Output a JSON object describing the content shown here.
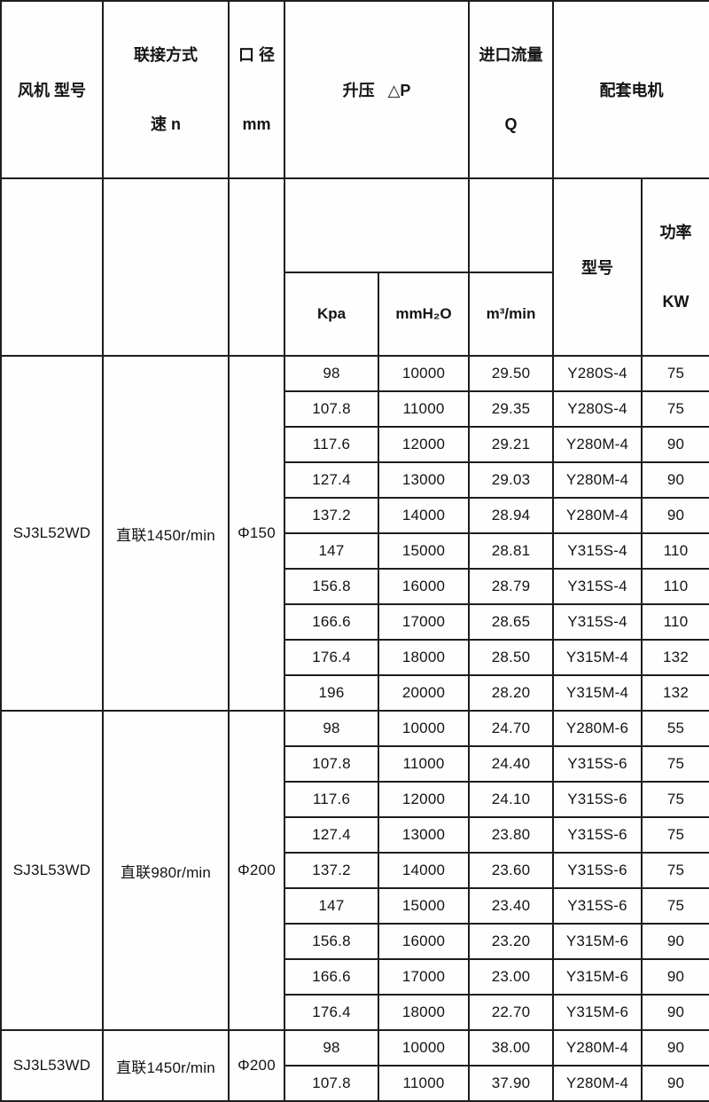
{
  "table": {
    "header": {
      "fan_model": "风机 型号",
      "connection": "联接方式",
      "connection_sub": "速 n",
      "diameter": "口 径",
      "diameter_unit": "mm",
      "pressure": "升压   △P",
      "flow": "进口流量",
      "flow_sub": "Q",
      "motor": "配套电机",
      "kpa": "Kpa",
      "mmh2o": "mmH₂O",
      "m3min": "m³/min",
      "motor_model": "型号",
      "power": "功率",
      "power_unit": "KW"
    },
    "groups": [
      {
        "model": "SJ3L52WD",
        "connection": "直联1450r/min",
        "diameter": "Φ150",
        "rows": [
          [
            "98",
            "10000",
            "29.50",
            "Y280S-4",
            "75"
          ],
          [
            "107.8",
            "11000",
            "29.35",
            "Y280S-4",
            "75"
          ],
          [
            "117.6",
            "12000",
            "29.21",
            "Y280M-4",
            "90"
          ],
          [
            "127.4",
            "13000",
            "29.03",
            "Y280M-4",
            "90"
          ],
          [
            "137.2",
            "14000",
            "28.94",
            "Y280M-4",
            "90"
          ],
          [
            "147",
            "15000",
            "28.81",
            "Y315S-4",
            "110"
          ],
          [
            "156.8",
            "16000",
            "28.79",
            "Y315S-4",
            "110"
          ],
          [
            "166.6",
            "17000",
            "28.65",
            "Y315S-4",
            "110"
          ],
          [
            "176.4",
            "18000",
            "28.50",
            "Y315M-4",
            "132"
          ],
          [
            "196",
            "20000",
            "28.20",
            "Y315M-4",
            "132"
          ]
        ]
      },
      {
        "model": "SJ3L53WD",
        "connection": "直联980r/min",
        "diameter": "Φ200",
        "rows": [
          [
            "98",
            "10000",
            "24.70",
            "Y280M-6",
            "55"
          ],
          [
            "107.8",
            "11000",
            "24.40",
            "Y315S-6",
            "75"
          ],
          [
            "117.6",
            "12000",
            "24.10",
            "Y315S-6",
            "75"
          ],
          [
            "127.4",
            "13000",
            "23.80",
            "Y315S-6",
            "75"
          ],
          [
            "137.2",
            "14000",
            "23.60",
            "Y315S-6",
            "75"
          ],
          [
            "147",
            "15000",
            "23.40",
            "Y315S-6",
            "75"
          ],
          [
            "156.8",
            "16000",
            "23.20",
            "Y315M-6",
            "90"
          ],
          [
            "166.6",
            "17000",
            "23.00",
            "Y315M-6",
            "90"
          ],
          [
            "176.4",
            "18000",
            "22.70",
            "Y315M-6",
            "90"
          ]
        ]
      },
      {
        "model": "SJ3L53WD",
        "connection": "直联1450r/min",
        "diameter": "Φ200",
        "rows": [
          [
            "98",
            "10000",
            "38.00",
            "Y280M-4",
            "90"
          ],
          [
            "107.8",
            "11000",
            "37.90",
            "Y280M-4",
            "90"
          ]
        ]
      }
    ]
  }
}
